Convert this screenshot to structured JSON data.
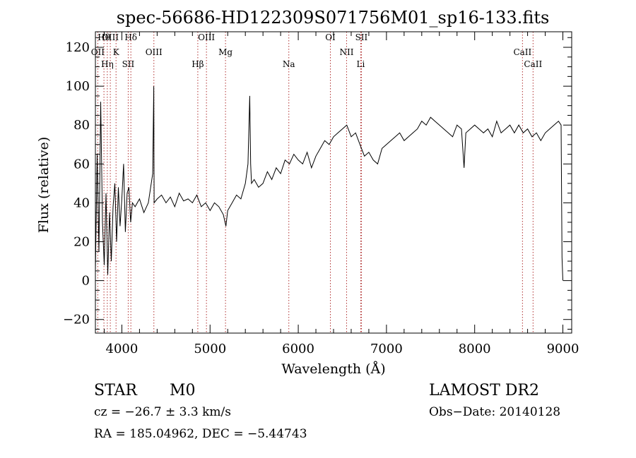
{
  "chart_data": {
    "type": "line",
    "title": "spec-56686-HD122309S071756M01_sp16-133.fits",
    "xlabel": "Wavelength (Å)",
    "ylabel": "Flux (relative)",
    "xlim": [
      3700,
      9100
    ],
    "ylim": [
      -27,
      128
    ],
    "xticks": [
      4000,
      5000,
      6000,
      7000,
      8000,
      9000
    ],
    "yticks": [
      -20,
      0,
      20,
      40,
      60,
      80,
      100,
      120
    ],
    "grid": false,
    "series": [
      {
        "x": [
          3700,
          3720,
          3740,
          3760,
          3780,
          3800,
          3820,
          3840,
          3860,
          3880,
          3900,
          3920,
          3940,
          3960,
          3980,
          4000,
          4020,
          4040,
          4060,
          4080,
          4100,
          4120,
          4150,
          4200,
          4250,
          4300,
          4350,
          4362,
          4366,
          4400,
          4450,
          4500,
          4550,
          4600,
          4650,
          4700,
          4750,
          4800,
          4850,
          4900,
          4950,
          5000,
          5050,
          5100,
          5150,
          5180,
          5200,
          5250,
          5300,
          5350,
          5400,
          5430,
          5450,
          5460,
          5470,
          5500,
          5550,
          5600,
          5650,
          5700,
          5750,
          5800,
          5850,
          5900,
          5950,
          6000,
          6050,
          6100,
          6150,
          6200,
          6250,
          6300,
          6350,
          6400,
          6450,
          6500,
          6550,
          6600,
          6650,
          6700,
          6750,
          6800,
          6850,
          6900,
          6950,
          7000,
          7050,
          7100,
          7150,
          7200,
          7250,
          7300,
          7350,
          7400,
          7450,
          7500,
          7550,
          7600,
          7650,
          7700,
          7750,
          7800,
          7850,
          7880,
          7900,
          7950,
          8000,
          8050,
          8100,
          8150,
          8200,
          8250,
          8300,
          8350,
          8400,
          8450,
          8500,
          8550,
          8600,
          8650,
          8700,
          8750,
          8800,
          8850,
          8900,
          8950,
          8980,
          8990,
          9000
        ],
        "values": [
          5,
          65,
          15,
          92,
          30,
          8,
          45,
          3,
          35,
          10,
          38,
          50,
          20,
          48,
          28,
          42,
          60,
          25,
          45,
          48,
          30,
          40,
          38,
          42,
          35,
          40,
          55,
          100,
          40,
          42,
          44,
          40,
          43,
          38,
          45,
          41,
          42,
          40,
          44,
          38,
          40,
          36,
          40,
          38,
          34,
          28,
          36,
          40,
          44,
          42,
          50,
          60,
          95,
          60,
          50,
          52,
          48,
          50,
          56,
          52,
          58,
          55,
          62,
          60,
          65,
          62,
          60,
          66,
          58,
          64,
          68,
          72,
          70,
          74,
          76,
          78,
          80,
          74,
          76,
          70,
          64,
          66,
          62,
          60,
          68,
          70,
          72,
          74,
          76,
          72,
          74,
          76,
          78,
          82,
          80,
          84,
          82,
          80,
          78,
          76,
          74,
          80,
          78,
          58,
          76,
          78,
          80,
          78,
          76,
          78,
          74,
          82,
          76,
          78,
          80,
          76,
          80,
          76,
          78,
          74,
          76,
          72,
          76,
          78,
          80,
          82,
          80,
          12,
          0
        ]
      }
    ],
    "lines_top": [
      {
        "label": "Hθ",
        "x": 3797
      },
      {
        "label": "OII",
        "x": 3727
      },
      {
        "label": "Hη",
        "x": 3835
      },
      {
        "label": "OIII",
        "x": 3869
      },
      {
        "label": "K",
        "x": 3934
      },
      {
        "label": "SII",
        "x": 4072
      },
      {
        "label": "Hδ",
        "x": 4102
      },
      {
        "label": "OIII",
        "x": 4363
      },
      {
        "label": "Hβ",
        "x": 4861
      },
      {
        "label": "OIII",
        "x": 4959
      },
      {
        "label": "Mg",
        "x": 5175
      },
      {
        "label": "Na",
        "x": 5893
      },
      {
        "label": "OI",
        "x": 6364
      },
      {
        "label": "NII",
        "x": 6548
      },
      {
        "label": "Li",
        "x": 6708
      },
      {
        "label": "SII",
        "x": 6716
      },
      {
        "label": "CaII",
        "x": 8542
      },
      {
        "label": "CaII",
        "x": 8662
      }
    ]
  },
  "info": {
    "class": "STAR",
    "subclass": "M0",
    "survey": "LAMOST DR2",
    "cz": "cz = −26.7 ± 3.3 km/s",
    "obs_date": "Obs−Date: 20140128",
    "radec": "RA = 185.04962, DEC =  −5.44743"
  }
}
